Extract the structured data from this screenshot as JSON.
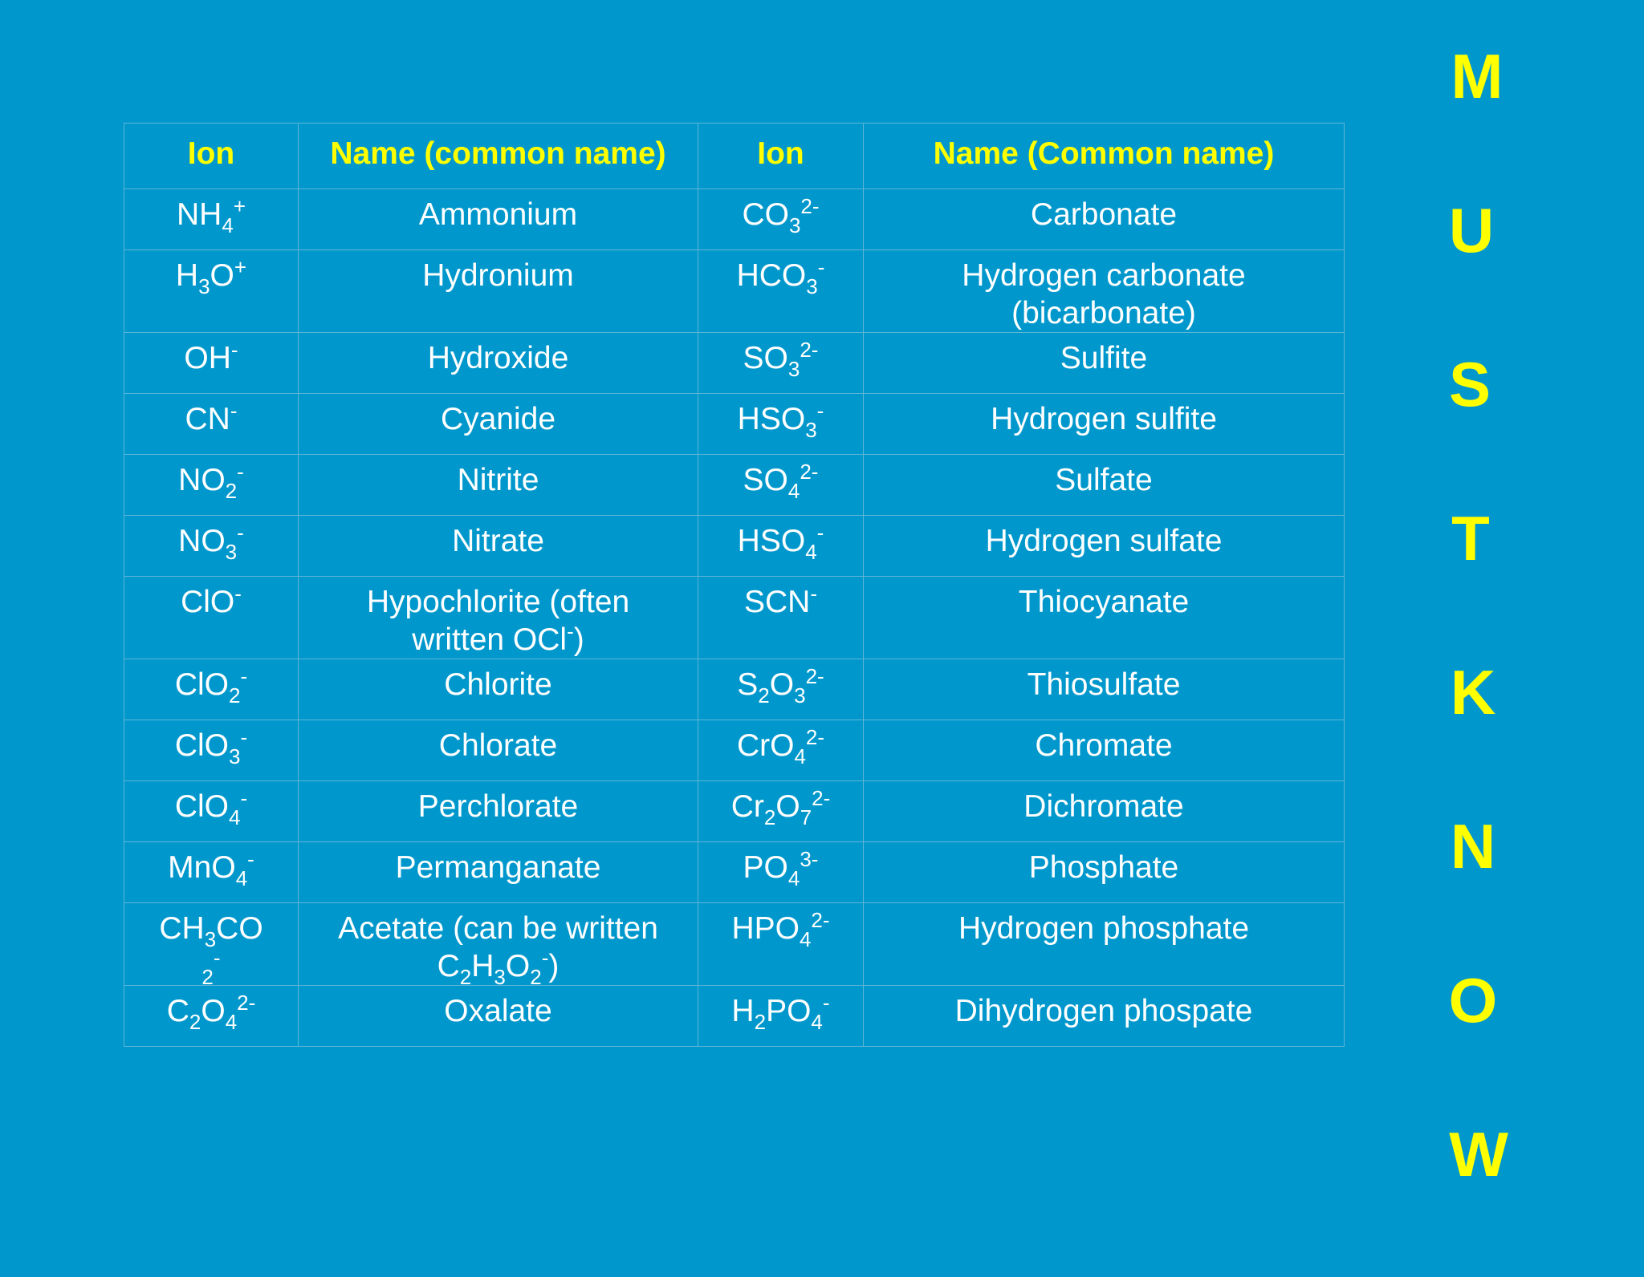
{
  "table": {
    "headers": [
      "Ion",
      "Name (common name)",
      "Ion",
      "Name (Common name)"
    ],
    "rows": [
      {
        "ion1": "NH<sub>4</sub><sup>+</sup>",
        "name1": "Ammonium",
        "ion2": "CO<sub>3</sub><sup>2-</sup>",
        "name2": "Carbonate"
      },
      {
        "ion1": "H<sub>3</sub>O<sup>+</sup>",
        "name1": "Hydronium",
        "ion2": "HCO<sub>3</sub><sup>-</sup>",
        "name2": "Hydrogen carbonate\n(bicarbonate)"
      },
      {
        "ion1": "OH<sup>-</sup>",
        "name1": "Hydroxide",
        "ion2": "SO<sub>3</sub><sup>2-</sup>",
        "name2": "Sulfite"
      },
      {
        "ion1": "CN<sup>-</sup>",
        "name1": "Cyanide",
        "ion2": "HSO<sub>3</sub><sup>-</sup>",
        "name2": "Hydrogen sulfite"
      },
      {
        "ion1": "NO<sub>2</sub><sup>-</sup>",
        "name1": "Nitrite",
        "ion2": "SO<sub>4</sub><sup>2-</sup>",
        "name2": "Sulfate"
      },
      {
        "ion1": "NO<sub>3</sub><sup>-</sup>",
        "name1": "Nitrate",
        "ion2": "HSO<sub>4</sub><sup>-</sup>",
        "name2": "Hydrogen sulfate"
      },
      {
        "ion1": "ClO<sup>-</sup>",
        "name1": "Hypochlorite (often\nwritten OCl<sup>-</sup>)",
        "ion2": "SCN<sup>-</sup>",
        "name2": "Thiocyanate"
      },
      {
        "ion1": "ClO<sub>2</sub><sup>-</sup>",
        "name1": "Chlorite",
        "ion2": "S<sub>2</sub>O<sub>3</sub><sup>2-</sup>",
        "name2": "Thiosulfate"
      },
      {
        "ion1": "ClO<sub>3</sub><sup>-</sup>",
        "name1": "Chlorate",
        "ion2": "CrO<sub>4</sub><sup>2-</sup>",
        "name2": "Chromate"
      },
      {
        "ion1": "ClO<sub>4</sub><sup>-</sup>",
        "name1": "Perchlorate",
        "ion2": "Cr<sub>2</sub>O<sub>7</sub><sup>2-</sup>",
        "name2": "Dichromate"
      },
      {
        "ion1": "MnO<sub>4</sub><sup>-</sup>",
        "name1": "Permanganate",
        "ion2": "PO<sub>4</sub><sup>3-</sup>",
        "name2": "Phosphate"
      },
      {
        "ion1": "CH<sub>3</sub>CO<br><sub>2</sub><sup>-</sup>",
        "name1": "Acetate (can be written\nC<sub>2</sub>H<sub>3</sub>O<sub>2</sub><sup>-</sup>)",
        "ion2": "HPO<sub>4</sub><sup>2-</sup>",
        "name2": "Hydrogen phosphate"
      },
      {
        "ion1": "C<sub>2</sub>O<sub>4</sub><sup>2-</sup>",
        "name1": "Oxalate",
        "ion2": "H<sub>2</sub>PO<sub>4</sub><sup>-</sup>",
        "name2": "Dihydrogen phospate"
      }
    ]
  },
  "side_word": [
    "M",
    "U",
    "S",
    "T",
    "K",
    "N",
    "O",
    "W"
  ]
}
